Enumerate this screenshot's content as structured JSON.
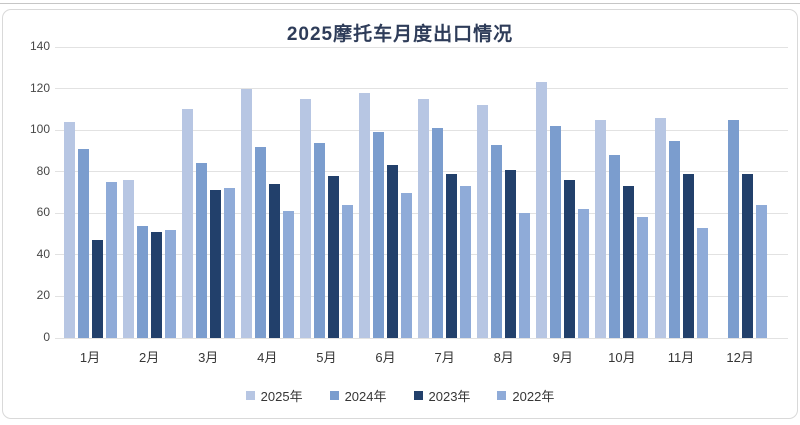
{
  "page": {
    "title": "2025摩托车月度出口情况"
  },
  "chart_data": {
    "type": "bar",
    "title": "2025摩托车月度出口情况",
    "xlabel": "",
    "ylabel": "",
    "ylim": [
      0,
      140
    ],
    "ytick_step": 20,
    "grid": true,
    "legend_position": "bottom",
    "categories": [
      "1月",
      "2月",
      "3月",
      "4月",
      "5月",
      "6月",
      "7月",
      "8月",
      "9月",
      "10月",
      "11月",
      "12月"
    ],
    "series": [
      {
        "name": "2025年",
        "color": "#b7c6e3",
        "values": [
          104,
          76,
          110,
          120,
          115,
          118,
          115,
          112,
          123,
          105,
          106,
          null
        ]
      },
      {
        "name": "2024年",
        "color": "#7b9dce",
        "values": [
          91,
          54,
          84,
          92,
          94,
          99,
          101,
          93,
          102,
          88,
          95,
          105
        ]
      },
      {
        "name": "2023年",
        "color": "#22406b",
        "values": [
          47,
          51,
          71,
          74,
          78,
          83,
          79,
          81,
          76,
          73,
          79,
          79
        ]
      },
      {
        "name": "2022年",
        "color": "#8fabd8",
        "values": [
          75,
          52,
          72,
          61,
          64,
          70,
          73,
          60,
          62,
          58,
          53,
          64
        ]
      }
    ]
  }
}
